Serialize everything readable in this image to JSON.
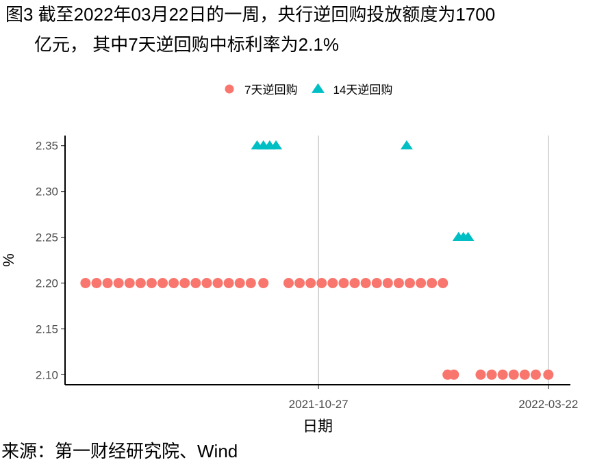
{
  "chart_data": {
    "type": "scatter",
    "title": "图3  截至2022年03月22日的一周，央行逆回购投放额度为1700",
    "subtitle": "亿元， 其中7天逆回购中标利率为2.1%",
    "source": "来源：第一财经研究院、Wind",
    "x_label": "日期",
    "y_label": "%",
    "xlim": [
      "2021-05-19",
      "2022-04-05"
    ],
    "xticks": [
      "2021-10-27",
      "2022-03-22"
    ],
    "ylim": [
      2.089,
      2.361
    ],
    "yticks": [
      {
        "value": 2.1,
        "label": "2.10"
      },
      2.15,
      {
        "value": 2.2,
        "label": "2.20"
      },
      2.25,
      {
        "value": 2.3,
        "label": "2.30"
      },
      2.35
    ],
    "grid": "x",
    "legend": "top",
    "series": [
      {
        "name": "7天逆回购",
        "color": "#F8766D",
        "marker": "circle",
        "x": [
          "2021-06-01",
          "2021-06-08",
          "2021-06-15",
          "2021-06-22",
          "2021-06-29",
          "2021-07-06",
          "2021-07-13",
          "2021-07-20",
          "2021-07-27",
          "2021-08-03",
          "2021-08-10",
          "2021-08-17",
          "2021-08-24",
          "2021-08-31",
          "2021-09-07",
          "2021-09-14",
          "2021-09-22",
          "2021-10-08",
          "2021-10-15",
          "2021-10-22",
          "2021-10-29",
          "2021-11-05",
          "2021-11-12",
          "2021-11-19",
          "2021-11-26",
          "2021-12-03",
          "2021-12-10",
          "2021-12-17",
          "2021-12-24",
          "2021-12-31",
          "2022-01-07",
          "2022-01-14",
          "2022-01-17",
          "2022-01-21",
          "2022-02-07",
          "2022-02-14",
          "2022-02-21",
          "2022-02-28",
          "2022-03-07",
          "2022-03-14",
          "2022-03-22"
        ],
        "values": [
          2.2,
          2.2,
          2.2,
          2.2,
          2.2,
          2.2,
          2.2,
          2.2,
          2.2,
          2.2,
          2.2,
          2.2,
          2.2,
          2.2,
          2.2,
          2.2,
          2.2,
          2.2,
          2.2,
          2.2,
          2.2,
          2.2,
          2.2,
          2.2,
          2.2,
          2.2,
          2.2,
          2.2,
          2.2,
          2.2,
          2.2,
          2.2,
          2.1,
          2.1,
          2.1,
          2.1,
          2.1,
          2.1,
          2.1,
          2.1,
          2.1
        ]
      },
      {
        "name": "14天逆回购",
        "color": "#00BFC4",
        "marker": "triangle",
        "x": [
          "2021-09-18",
          "2021-09-22",
          "2021-09-26",
          "2021-09-30",
          "2021-12-22",
          "2022-01-24",
          "2022-01-27",
          "2022-01-30"
        ],
        "values": [
          2.35,
          2.35,
          2.35,
          2.35,
          2.35,
          2.25,
          2.25,
          2.25
        ]
      }
    ]
  }
}
